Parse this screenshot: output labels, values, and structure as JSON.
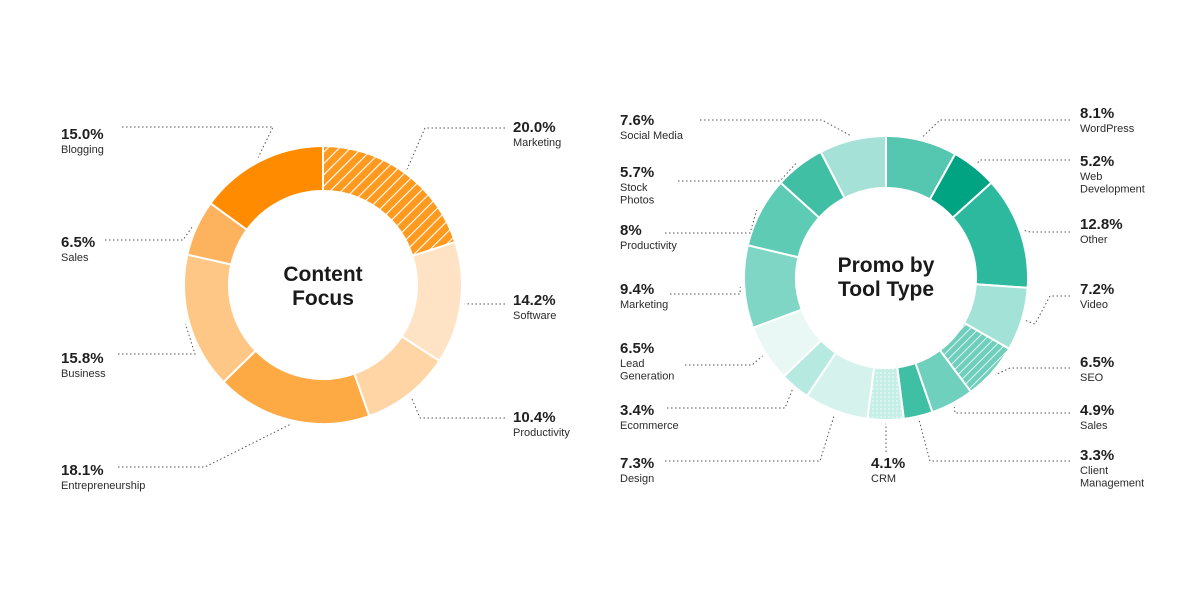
{
  "chart_data": [
    {
      "type": "donut",
      "title_lines": [
        "Content",
        "Focus"
      ],
      "unit": "%",
      "slices": [
        {
          "label": "Marketing",
          "pct_text": "20.0%",
          "value": 20.0,
          "color": "#F7941D",
          "hatched": true
        },
        {
          "label": "Software",
          "pct_text": "14.2%",
          "value": 14.2,
          "color": "#FFE3C4",
          "hatched": false
        },
        {
          "label": "Productivity",
          "pct_text": "10.4%",
          "value": 10.4,
          "color": "#FFD5A6",
          "hatched": false
        },
        {
          "label": "Entrepreneurship",
          "pct_text": "18.1%",
          "value": 18.1,
          "color": "#FDA944",
          "hatched": false
        },
        {
          "label": "Business",
          "pct_text": "15.8%",
          "value": 15.8,
          "color": "#FFC785",
          "hatched": false
        },
        {
          "label": "Sales",
          "pct_text": "6.5%",
          "value": 6.5,
          "color": "#FDB35E",
          "hatched": false
        },
        {
          "label": "Blogging",
          "pct_text": "15.0%",
          "value": 15.0,
          "color": "#FF8C00",
          "hatched": false
        }
      ]
    },
    {
      "type": "donut",
      "title_lines": [
        "Promo by",
        "Tool Type"
      ],
      "unit": "%",
      "slices": [
        {
          "label": "WordPress",
          "label_lines": [
            "WordPress"
          ],
          "pct_text": "8.1%",
          "value": 8.1,
          "color": "#55C6B0",
          "hatched": false
        },
        {
          "label": "Web Development",
          "label_lines": [
            "Web",
            "Development"
          ],
          "pct_text": "5.2%",
          "value": 5.2,
          "color": "#00A482",
          "hatched": false
        },
        {
          "label": "Other",
          "label_lines": [
            "Other"
          ],
          "pct_text": "12.8%",
          "value": 12.8,
          "color": "#2DB99E",
          "hatched": false
        },
        {
          "label": "Video",
          "label_lines": [
            "Video"
          ],
          "pct_text": "7.2%",
          "value": 7.2,
          "color": "#A3E2D6",
          "hatched": false
        },
        {
          "label": "SEO",
          "label_lines": [
            "SEO"
          ],
          "pct_text": "6.5%",
          "value": 6.5,
          "color": "#7CD3C2",
          "hatched": true
        },
        {
          "label": "Sales",
          "label_lines": [
            "Sales"
          ],
          "pct_text": "4.9%",
          "value": 4.9,
          "color": "#6ED0BD",
          "hatched": false
        },
        {
          "label": "Client Management",
          "label_lines": [
            "Client",
            "Management"
          ],
          "pct_text": "3.3%",
          "value": 3.3,
          "color": "#3FBFA4",
          "hatched": false
        },
        {
          "label": "CRM",
          "label_lines": [
            "CRM"
          ],
          "pct_text": "4.1%",
          "value": 4.1,
          "color": "#B6E9DF",
          "hatched": true
        },
        {
          "label": "Design",
          "label_lines": [
            "Design"
          ],
          "pct_text": "7.3%",
          "value": 7.3,
          "color": "#D6F2EC",
          "hatched": false
        },
        {
          "label": "Ecommerce",
          "label_lines": [
            "Ecommerce"
          ],
          "pct_text": "3.4%",
          "value": 3.4,
          "color": "#B6E9DF",
          "hatched": false
        },
        {
          "label": "Lead Generation",
          "label_lines": [
            "Lead",
            "Generation"
          ],
          "pct_text": "6.5%",
          "value": 6.5,
          "color": "#EAF8F5",
          "hatched": false
        },
        {
          "label": "Marketing",
          "label_lines": [
            "Marketing"
          ],
          "pct_text": "9.4%",
          "value": 9.4,
          "color": "#7FD6C5",
          "hatched": false
        },
        {
          "label": "Productivity",
          "label_lines": [
            "Productivity"
          ],
          "pct_text": "8%",
          "value": 8.0,
          "color": "#5ECBB5",
          "hatched": false
        },
        {
          "label": "Stock Photos",
          "label_lines": [
            "Stock",
            "Photos"
          ],
          "pct_text": "5.7%",
          "value": 5.7,
          "color": "#40BFA5",
          "hatched": false
        },
        {
          "label": "Social Media",
          "label_lines": [
            "Social Media"
          ],
          "pct_text": "7.6%",
          "value": 7.6,
          "color": "#A5E1D6",
          "hatched": false
        }
      ]
    }
  ]
}
